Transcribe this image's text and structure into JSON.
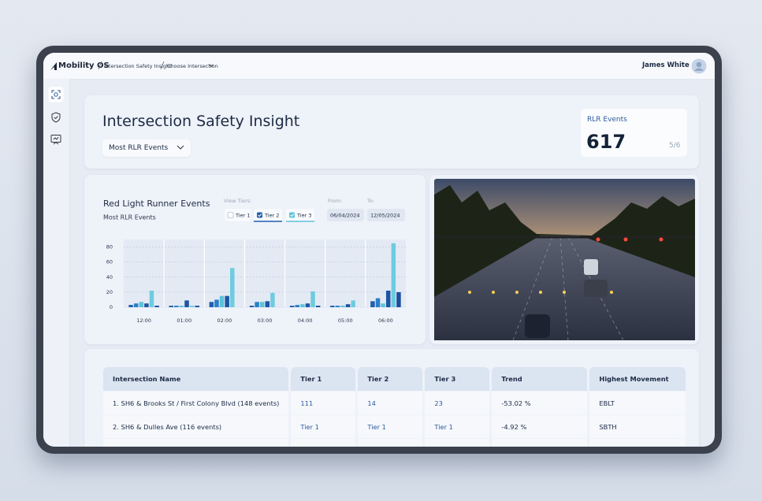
{
  "nav": {
    "brand": "Mobility OS",
    "breadcrumb": [
      "Intersection Safety Insight",
      "Choose Intersection"
    ],
    "user": "James White"
  },
  "header": {
    "title": "Intersection Safety Insight",
    "dropdown": "Most RLR Events"
  },
  "kpi": {
    "label": "RLR Events",
    "value": 617,
    "rank": "5/6"
  },
  "chart_filters": {
    "label": "View Tiers:",
    "tiers": [
      {
        "label": "Tier 1",
        "checked": false
      },
      {
        "label": "Tier 2",
        "checked": true
      },
      {
        "label": "Tier 3",
        "checked": true
      }
    ],
    "from_label": "From:",
    "from": "06/04/2024",
    "to_label": "To:",
    "to": "12/05/2024"
  },
  "chart_data": {
    "type": "bar",
    "title": "Red Light Runner Events",
    "subtitle": "Most RLR Events",
    "categories": [
      "12:00",
      "01:00",
      "02:00",
      "03:00",
      "04:00",
      "05:00",
      "06:00"
    ],
    "series": [
      {
        "color": "#1f5fae",
        "values": [
          3,
          2,
          7,
          2,
          2,
          2,
          8
        ]
      },
      {
        "color": "#2b7fc9",
        "values": [
          5,
          2,
          10,
          7,
          3,
          2,
          12
        ]
      },
      {
        "color": "#5cc3d9",
        "values": [
          7,
          2,
          15,
          7,
          4,
          2,
          5
        ]
      },
      {
        "color": "#1d55a3",
        "values": [
          5,
          9,
          15,
          8,
          5,
          4,
          22
        ]
      },
      {
        "color": "#6ecbe0",
        "values": [
          22,
          2,
          52,
          19,
          21,
          9,
          85
        ]
      },
      {
        "color": "#1a4f9c",
        "values": [
          2,
          2,
          0,
          0,
          2,
          0,
          20
        ]
      }
    ],
    "ylim": [
      0,
      90
    ],
    "yticks": [
      0,
      20,
      40,
      60,
      80
    ],
    "grid": true
  },
  "table": {
    "columns": [
      "Intersection Name",
      "Tier 1",
      "Tier 2",
      "Tier 3",
      "Trend",
      "Highest Movement"
    ],
    "rows": [
      [
        "1. SH6 & Brooks St / First Colony Blvd (148 events)",
        "111",
        "14",
        "23",
        "-53.02 %",
        "EBLT"
      ],
      [
        "2. SH6 & Dulles Ave (116 events)",
        "Tier 1",
        "Tier 1",
        "Tier 1",
        "-4.92 %",
        "SBTH"
      ]
    ]
  }
}
